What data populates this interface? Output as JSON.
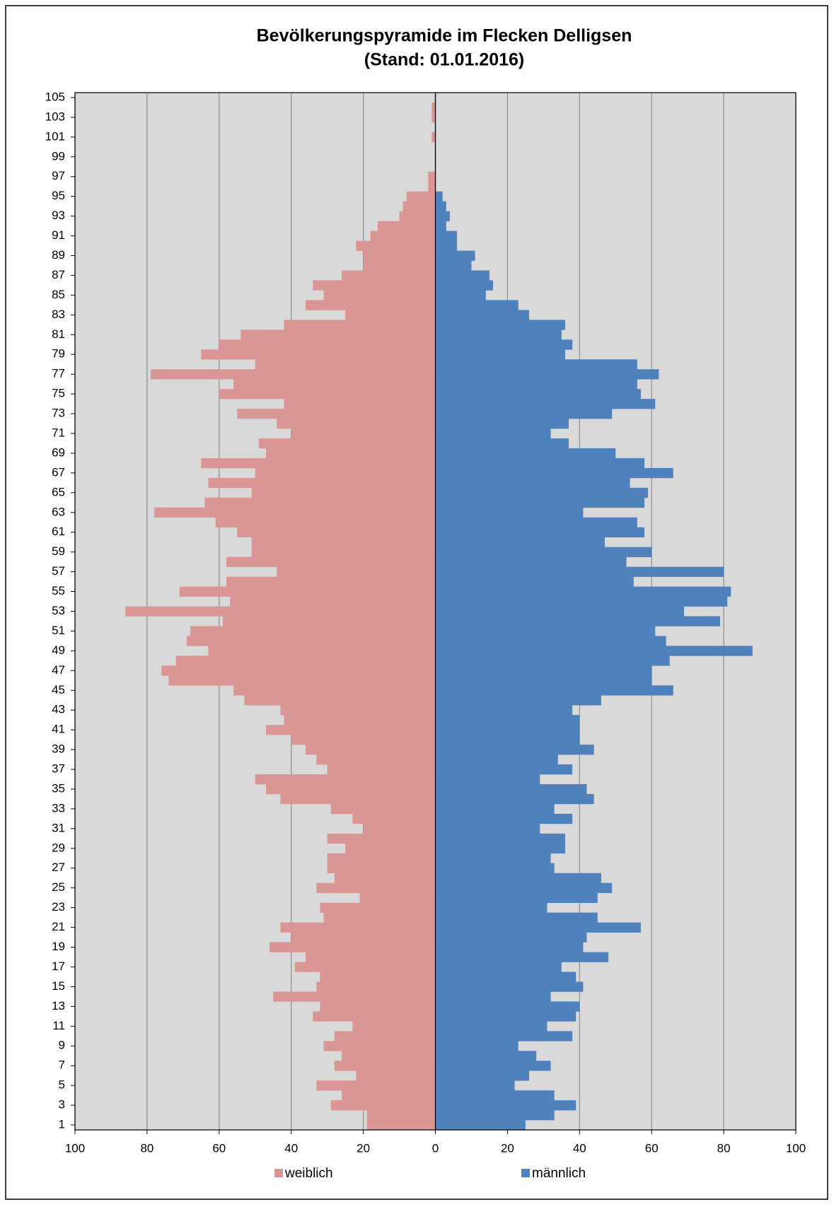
{
  "chart_data": {
    "type": "pyramid",
    "title": "Bevölkerungspyramide im Flecken Delligsen",
    "subtitle": "(Stand: 01.01.2016)",
    "categories": [
      1,
      null,
      3,
      null,
      5,
      null,
      7,
      null,
      9,
      null,
      11,
      null,
      13,
      null,
      15,
      null,
      17,
      null,
      19,
      null,
      21,
      null,
      23,
      null,
      25,
      null,
      27,
      null,
      29,
      null,
      31,
      null,
      33,
      null,
      35,
      null,
      37,
      null,
      39,
      null,
      41,
      null,
      43,
      null,
      45,
      null,
      47,
      null,
      49,
      null,
      51,
      null,
      53,
      null,
      55,
      null,
      57,
      null,
      59,
      null,
      61,
      null,
      63,
      null,
      65,
      null,
      67,
      null,
      69,
      null,
      71,
      null,
      73,
      null,
      75,
      null,
      77,
      null,
      79,
      null,
      81,
      null,
      83,
      null,
      85,
      null,
      87,
      null,
      89,
      null,
      91,
      null,
      93,
      null,
      95,
      null,
      97,
      null,
      99,
      null,
      101,
      null,
      103,
      null,
      105
    ],
    "series": [
      {
        "name": "weiblich",
        "color": "#d99694",
        "values": [
          -19,
          -19,
          -29,
          -26,
          -33,
          -22,
          -28,
          -26,
          -31,
          -28,
          -23,
          -34,
          -32,
          -45,
          -33,
          -32,
          -39,
          -36,
          -46,
          -40,
          -43,
          -31,
          -32,
          -21,
          -33,
          -28,
          -30,
          -30,
          -25,
          -30,
          -20,
          -23,
          -29,
          -43,
          -47,
          -50,
          -30,
          -33,
          -36,
          -40,
          -47,
          -42,
          -43,
          -53,
          -56,
          -74,
          -76,
          -72,
          -63,
          -69,
          -68,
          -59,
          -86,
          -57,
          -71,
          -58,
          -44,
          -58,
          -51,
          -51,
          -55,
          -61,
          -78,
          -64,
          -51,
          -63,
          -50,
          -65,
          -47,
          -49,
          -40,
          -44,
          -55,
          -42,
          -60,
          -56,
          -79,
          -50,
          -65,
          -60,
          -54,
          -42,
          -25,
          -36,
          -31,
          -34,
          -26,
          -20,
          -20,
          -22,
          -18,
          -16,
          -10,
          -9,
          -8,
          -2,
          -2,
          0,
          0,
          0,
          -1,
          0,
          -1,
          -1,
          0
        ]
      },
      {
        "name": "männlich",
        "color": "#4f81bd",
        "values": [
          25,
          33,
          39,
          33,
          22,
          26,
          32,
          28,
          23,
          38,
          31,
          39,
          40,
          32,
          41,
          39,
          35,
          48,
          41,
          42,
          57,
          45,
          31,
          45,
          49,
          46,
          33,
          32,
          36,
          36,
          29,
          38,
          33,
          44,
          42,
          29,
          38,
          34,
          44,
          40,
          40,
          40,
          38,
          46,
          66,
          60,
          60,
          65,
          88,
          64,
          61,
          79,
          69,
          81,
          82,
          55,
          80,
          53,
          60,
          47,
          58,
          56,
          41,
          58,
          59,
          54,
          66,
          58,
          50,
          37,
          32,
          37,
          49,
          61,
          57,
          56,
          62,
          56,
          36,
          38,
          35,
          36,
          26,
          23,
          14,
          16,
          15,
          10,
          11,
          6,
          6,
          3,
          4,
          3,
          2,
          0,
          0,
          0,
          0,
          0,
          0,
          0,
          0,
          0,
          0
        ]
      }
    ],
    "xlim": [
      -100,
      100
    ],
    "xticks": [
      {
        "value": -100,
        "label": "100"
      },
      {
        "value": -80,
        "label": "80"
      },
      {
        "value": -60,
        "label": "60"
      },
      {
        "value": -40,
        "label": "40"
      },
      {
        "value": -20,
        "label": "20"
      },
      0,
      20,
      40,
      60,
      80,
      100
    ],
    "grid": true,
    "legend": "bottom"
  }
}
